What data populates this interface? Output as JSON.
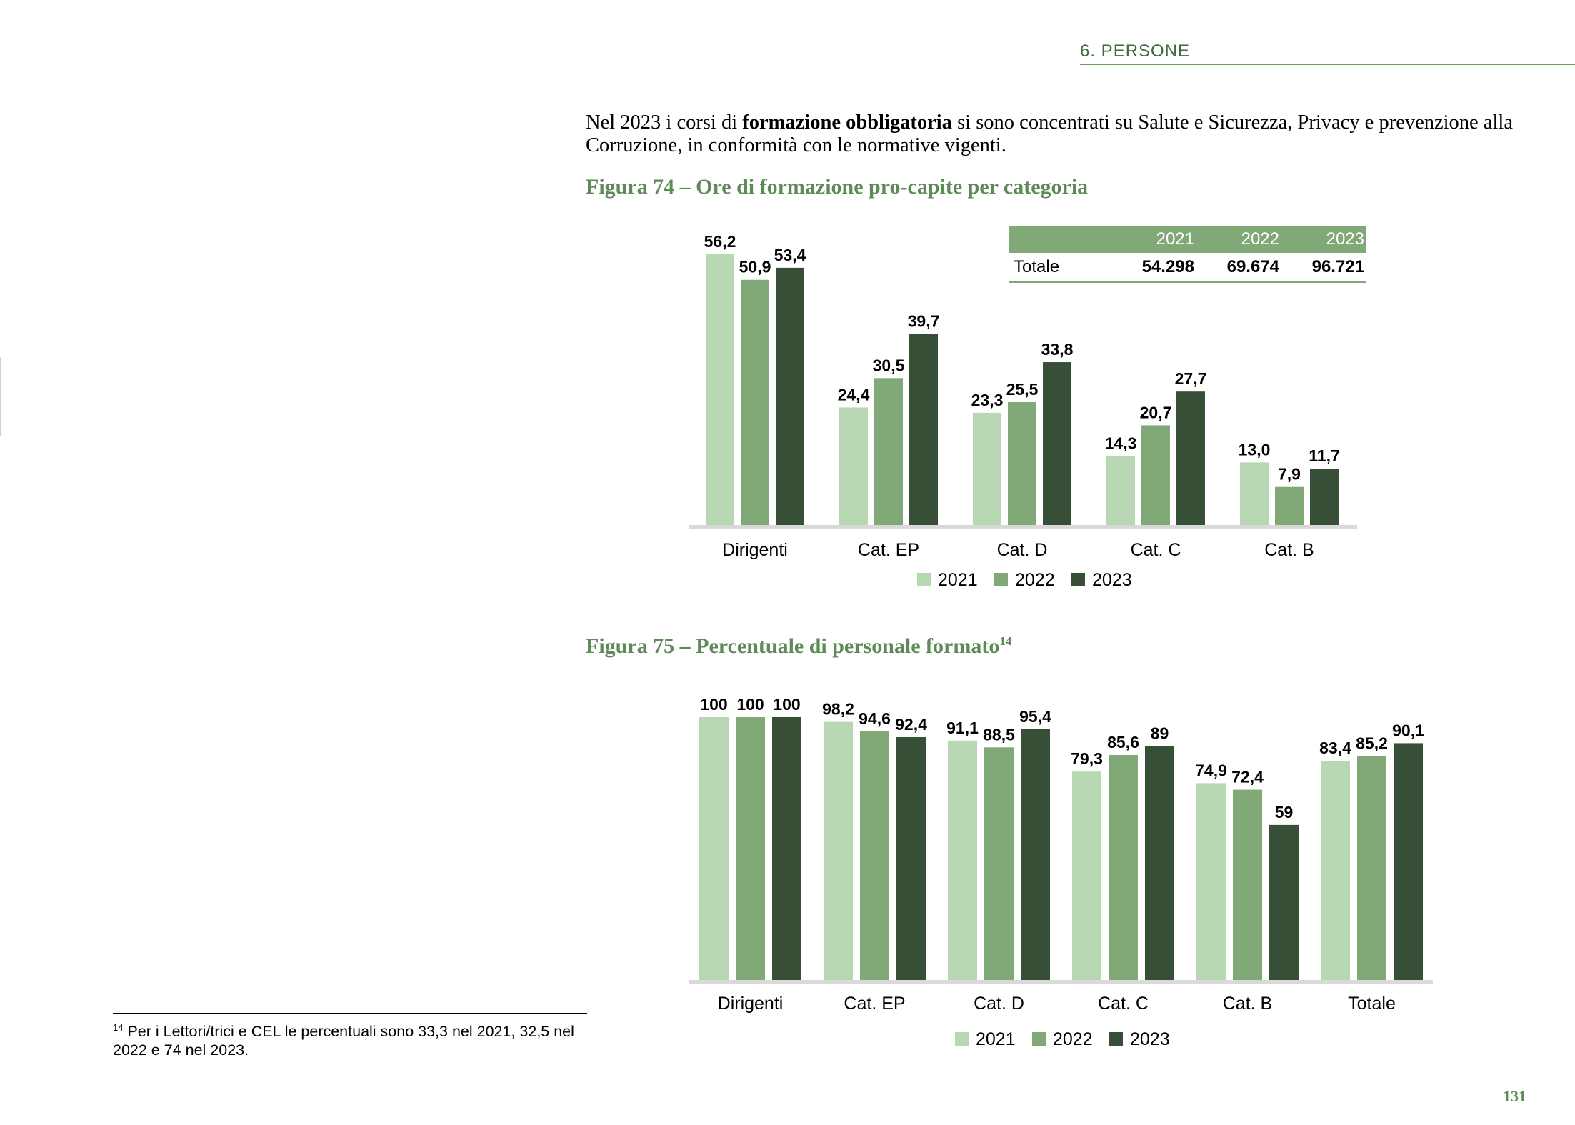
{
  "header": {
    "section": "6. PERSONE"
  },
  "intro": {
    "before": "Nel 2023 i corsi di ",
    "bold": "formazione obbligatoria",
    "after": " si sono concentrati su Salute e Sicurezza, Privacy e prevenzione alla Corruzione, in conformità con le normative vigenti."
  },
  "figure74": {
    "title": "Figura 74 – Ore di formazione pro-capite per categoria",
    "table": {
      "years": [
        "2021",
        "2022",
        "2023"
      ],
      "row_label": "Totale",
      "values": [
        "54.298",
        "69.674",
        "96.721"
      ]
    }
  },
  "figure75": {
    "title": "Figura 75 – Percentuale di personale formato",
    "footnote_ref": "14"
  },
  "footnote": {
    "mark": "14",
    "text": " Per i Lettori/trici e CEL le percentuali sono 33,3 nel 2021, 32,5 nel 2022 e 74 nel 2023."
  },
  "page_number": "131",
  "colors": {
    "y2021": "#b8d8b3",
    "y2022": "#80a977",
    "y2023": "#374f37",
    "accent": "#5d8a56"
  },
  "chart_data": [
    {
      "type": "bar",
      "title": "Figura 74 – Ore di formazione pro-capite per categoria",
      "categories": [
        "Dirigenti",
        "Cat. EP",
        "Cat. D",
        "Cat. C",
        "Cat. B"
      ],
      "series": [
        {
          "name": "2021",
          "values": [
            56.2,
            24.4,
            23.3,
            14.3,
            13.0
          ],
          "labels": [
            "56,2",
            "24,4",
            "23,3",
            "14,3",
            "13,0"
          ]
        },
        {
          "name": "2022",
          "values": [
            50.9,
            30.5,
            25.5,
            20.7,
            7.9
          ],
          "labels": [
            "50,9",
            "30,5",
            "25,5",
            "20,7",
            "7,9"
          ]
        },
        {
          "name": "2023",
          "values": [
            53.4,
            39.7,
            33.8,
            27.7,
            11.7
          ],
          "labels": [
            "53,4",
            "39,7",
            "33,8",
            "27,7",
            "11,7"
          ]
        }
      ],
      "ylim": [
        0,
        56.2
      ],
      "legend": "bottom",
      "grid": false
    },
    {
      "type": "bar",
      "title": "Figura 75 – Percentuale di personale formato",
      "categories": [
        "Dirigenti",
        "Cat. EP",
        "Cat. D",
        "Cat. C",
        "Cat. B",
        "Totale"
      ],
      "series": [
        {
          "name": "2021",
          "values": [
            100,
            98.2,
            91.1,
            79.3,
            74.9,
            83.4
          ],
          "labels": [
            "100",
            "98,2",
            "91,1",
            "79,3",
            "74,9",
            "83,4"
          ]
        },
        {
          "name": "2022",
          "values": [
            100,
            94.6,
            88.5,
            85.6,
            72.4,
            85.2
          ],
          "labels": [
            "100",
            "94,6",
            "88,5",
            "85,6",
            "72,4",
            "85,2"
          ]
        },
        {
          "name": "2023",
          "values": [
            100,
            92.4,
            95.4,
            89,
            59,
            90.1
          ],
          "labels": [
            "100",
            "92,4",
            "95,4",
            "89",
            "59",
            "90,1"
          ]
        }
      ],
      "ylim": [
        0,
        100
      ],
      "legend": "bottom",
      "grid": false
    }
  ]
}
